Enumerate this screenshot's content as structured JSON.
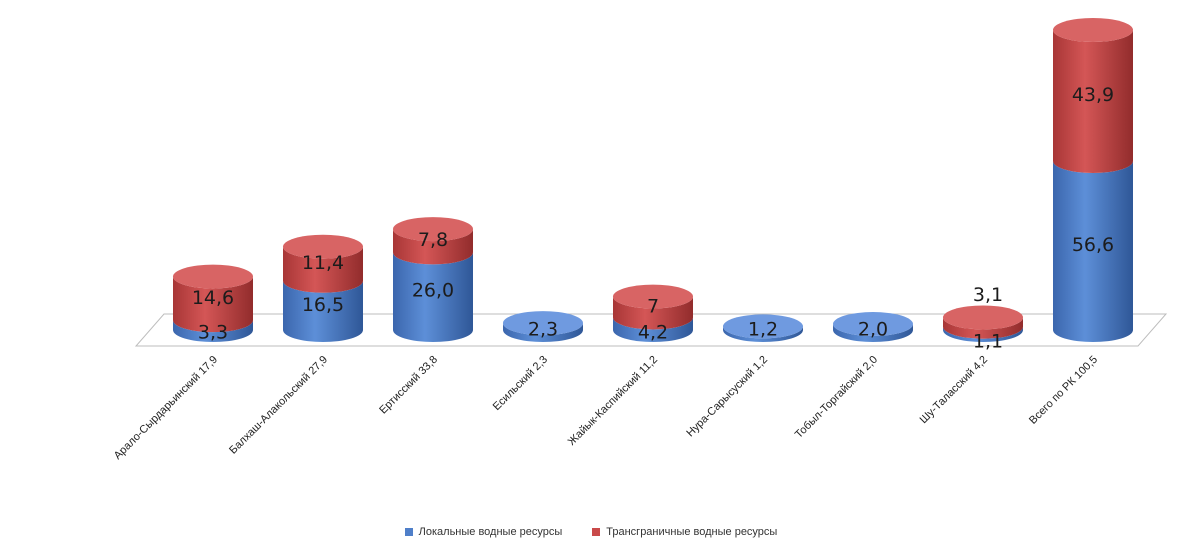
{
  "chart_data": {
    "type": "bar",
    "stacked": true,
    "style": "3d-cylinder",
    "categories": [
      "Арало-Сырдарьинский 17,9",
      "Балхаш-Алакольский 27,9",
      "Ертисский 33,8",
      "Есильский 2,3",
      "Жайык-Каспийский 11,2",
      "Нура-Сарысуский 1,2",
      "Тобыл-Торгайский 2,0",
      "Шу-Таласский 4,2",
      "Всего по РК 100,5"
    ],
    "series": [
      {
        "name": "Локальные водные ресурсы",
        "color": "#4f7fc9",
        "values": [
          3.3,
          16.5,
          26.0,
          2.3,
          4.2,
          1.2,
          2.0,
          1.1,
          56.6
        ],
        "labels": [
          "3,3",
          "16,5",
          "26,0",
          "2,3",
          "4,2",
          "1,2",
          "2,0",
          "1,1",
          "56,6"
        ]
      },
      {
        "name": "Трансграничные водные ресурсы",
        "color": "#c94a4a",
        "values": [
          14.6,
          11.4,
          7.8,
          0,
          7,
          0,
          0,
          3.1,
          43.9
        ],
        "labels": [
          "14,6",
          "11,4",
          "7,8",
          "",
          "7",
          "",
          "",
          "3,1",
          "43,9"
        ]
      }
    ],
    "ylim": [
      0,
      100.5
    ],
    "grid": false,
    "legend_position": "bottom"
  }
}
